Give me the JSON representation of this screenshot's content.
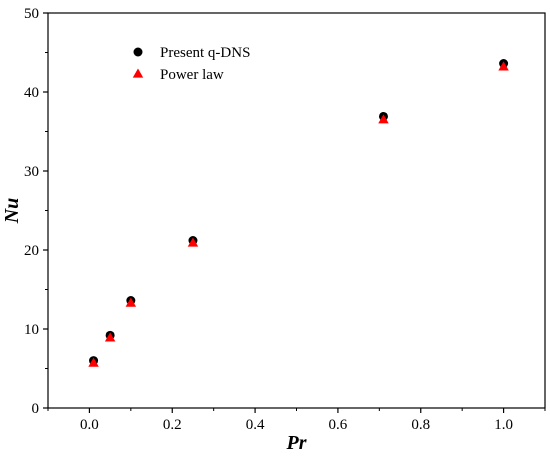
{
  "chart_data": {
    "type": "scatter",
    "title": "",
    "xlabel": "Pr",
    "ylabel": "Nu",
    "xlim": [
      -0.1,
      1.1
    ],
    "ylim": [
      0,
      50
    ],
    "xticks": [
      0.0,
      0.2,
      0.4,
      0.6,
      0.8,
      1.0
    ],
    "xtick_labels": [
      "0.0",
      "0.2",
      "0.4",
      "0.6",
      "0.8",
      "1.0"
    ],
    "yticks": [
      0,
      10,
      20,
      30,
      40,
      50
    ],
    "ytick_labels": [
      "0",
      "10",
      "20",
      "30",
      "40",
      "50"
    ],
    "grid": false,
    "legend_position": "top-left",
    "series": [
      {
        "name": "Present q-DNS",
        "marker": "circle",
        "color": "#000000",
        "x": [
          0.01,
          0.05,
          0.1,
          0.25,
          0.71,
          1.0
        ],
        "y": [
          6.0,
          9.2,
          13.6,
          21.2,
          36.9,
          43.6
        ]
      },
      {
        "name": "Power law",
        "marker": "triangle",
        "color": "#ff0000",
        "x": [
          0.01,
          0.05,
          0.1,
          0.25,
          0.71,
          1.0
        ],
        "y": [
          5.8,
          9.0,
          13.4,
          21.0,
          36.6,
          43.3
        ]
      }
    ]
  }
}
